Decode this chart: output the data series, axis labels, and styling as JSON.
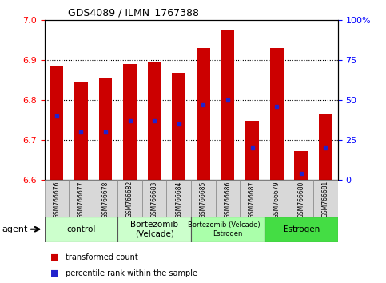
{
  "title": "GDS4089 / ILMN_1767388",
  "samples": [
    "GSM766676",
    "GSM766677",
    "GSM766678",
    "GSM766682",
    "GSM766683",
    "GSM766684",
    "GSM766685",
    "GSM766686",
    "GSM766687",
    "GSM766679",
    "GSM766680",
    "GSM766681"
  ],
  "transformed_counts": [
    6.885,
    6.843,
    6.855,
    6.89,
    6.895,
    6.868,
    6.93,
    6.975,
    6.748,
    6.93,
    6.672,
    6.763
  ],
  "percentile_ranks": [
    40,
    30,
    30,
    37,
    37,
    35,
    47,
    50,
    20,
    46,
    4,
    20
  ],
  "ymin": 6.6,
  "ymax": 7.0,
  "yticks": [
    6.6,
    6.7,
    6.8,
    6.9,
    7.0
  ],
  "right_yticks": [
    0,
    25,
    50,
    75,
    100
  ],
  "bar_color": "#cc0000",
  "percentile_color": "#2222cc",
  "bar_width": 0.55,
  "group_defs": [
    {
      "label": "control",
      "indices": [
        0,
        1,
        2
      ],
      "color": "#ccffcc"
    },
    {
      "label": "Bortezomib\n(Velcade)",
      "indices": [
        3,
        4,
        5
      ],
      "color": "#ccffcc"
    },
    {
      "label": "Bortezomib (Velcade) +\nEstrogen",
      "indices": [
        6,
        7,
        8
      ],
      "color": "#aaffaa"
    },
    {
      "label": "Estrogen",
      "indices": [
        9,
        10,
        11
      ],
      "color": "#44dd44"
    }
  ],
  "legend_items": [
    {
      "color": "#cc0000",
      "label": "transformed count"
    },
    {
      "color": "#2222cc",
      "label": "percentile rank within the sample"
    }
  ]
}
